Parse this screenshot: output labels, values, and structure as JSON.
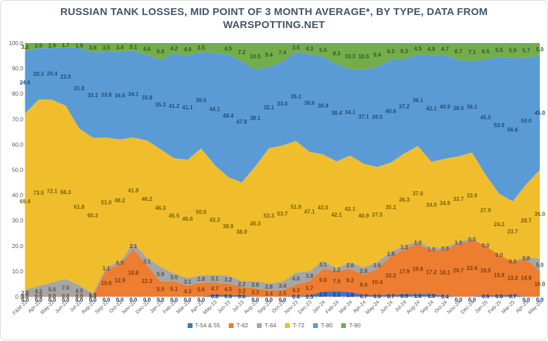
{
  "chart_data": {
    "type": "area",
    "stacking": "percent",
    "title": "RUSSIAN TANK LOSSES, MID POINT OF 3 MONTH AVERAGE*, BY TYPE, DATA FROM WARSPOTTING.NET",
    "grid": false,
    "legend_position": "bottom",
    "categories": [
      "F&M 22",
      "Apr-22",
      "May-22",
      "Jun-22",
      "Jul-22",
      "Aug-22",
      "Sep-22",
      "Oct-22",
      "Nov-22",
      "Dec-22",
      "Jan-23",
      "Feb-23",
      "Mar-23",
      "Apr-23",
      "May-23",
      "Jun-23",
      "Jul-23",
      "Aug-23",
      "Sep-23",
      "Oct-23",
      "Nov-23",
      "Dec-23",
      "Jan-24",
      "Feb-24",
      "Mar-24",
      "Apr-24",
      "May-24",
      "Jun-24",
      "Jul-24",
      "Aug-24",
      "Sep-24",
      "Oct-24",
      "Nov-24",
      "Dec-24",
      "Jan-25",
      "Feb-25",
      "Mar-25",
      "Apr-25",
      "May-25"
    ],
    "y_axis": {
      "min": 0,
      "max": 100,
      "step": 10,
      "tick_labels": [
        "100.0",
        "90.0",
        "80.0",
        "70.0",
        "60.0",
        "50.0",
        "40.0",
        "30.0",
        "20.0",
        "10.0",
        "0.0"
      ]
    },
    "series": [
      {
        "name": "T-54 & 55",
        "color": "#4472C4",
        "label_color": "#1F3864",
        "values": [
          0.0,
          0.0,
          0.0,
          0.0,
          0.0,
          0.0,
          0.0,
          0.0,
          0.0,
          0.0,
          0.0,
          0.0,
          0.0,
          0.0,
          0.8,
          0.6,
          0.6,
          0.0,
          0.0,
          0.0,
          0.4,
          0.5,
          2.0,
          2.1,
          1.8,
          0.7,
          0.6,
          0.7,
          0.9,
          1.0,
          1.0,
          0.4,
          0.0,
          0.0,
          0.6,
          0.6,
          0.7,
          0.0,
          0.0
        ]
      },
      {
        "name": "T-62",
        "color": "#ED7D31",
        "label_color": "#833C0C",
        "values": [
          0.0,
          0.0,
          0.0,
          0.0,
          0.0,
          0.0,
          10.6,
          12.9,
          18.8,
          12.3,
          5.9,
          6.1,
          4.3,
          5.6,
          4.7,
          4.5,
          3.3,
          3.3,
          2.4,
          2.5,
          4.3,
          5.7,
          9.0,
          7.9,
          9.2,
          8.0,
          10.4,
          15.2,
          17.9,
          19.8,
          17.2,
          18.1,
          20.7,
          22.4,
          19.5,
          15.8,
          13.2,
          14.8,
          10.0
        ]
      },
      {
        "name": "T-64",
        "color": "#A6A6A6",
        "label_color": "#525252",
        "values": [
          2.8,
          4.2,
          5.6,
          7.0,
          4.5,
          1.3,
          1.1,
          0.9,
          2.1,
          3.1,
          5.9,
          3.0,
          3.1,
          2.8,
          3.1,
          3.2,
          2.2,
          2.8,
          2.8,
          3.4,
          4.8,
          3.8,
          3.1,
          1.2,
          2.6,
          2.8,
          2.6,
          1.8,
          1.3,
          1.0,
          1.0,
          0.9,
          1.0,
          0.5,
          0.0,
          0.0,
          0.0,
          0.8,
          5.0
        ]
      },
      {
        "name": "T-72",
        "color": "#F0BE2C",
        "label_color": "#7F6000",
        "values": [
          69.4,
          73.5,
          72.1,
          68.3,
          61.8,
          60.3,
          51.0,
          48.2,
          41.8,
          46.2,
          46.3,
          45.5,
          46.6,
          50.0,
          43.3,
          38.9,
          38.9,
          45.3,
          53.3,
          53.7,
          51.9,
          47.1,
          42.0,
          42.1,
          42.1,
          40.9,
          37.5,
          35.1,
          36.3,
          37.6,
          34.0,
          34.9,
          33.7,
          33.9,
          27.9,
          24.2,
          23.7,
          28.7,
          35.0
        ]
      },
      {
        "name": "T-80",
        "color": "#5B9BD5",
        "label_color": "#1F4E79",
        "values": [
          24.6,
          20.3,
          20.4,
          23.0,
          31.8,
          33.1,
          33.8,
          34.6,
          34.1,
          33.8,
          35.3,
          41.2,
          41.1,
          38.0,
          44.1,
          48.4,
          47.8,
          38.1,
          32.1,
          33.0,
          35.1,
          38.6,
          38.4,
          38.4,
          34.1,
          37.1,
          39.5,
          40.6,
          37.2,
          36.1,
          42.1,
          40.9,
          38.0,
          36.1,
          45.5,
          53.9,
          56.6,
          50.0,
          45.0
        ]
      },
      {
        "name": "T-90",
        "color": "#73AD4C",
        "label_color": "#375623",
        "values": [
          3.2,
          2.0,
          1.9,
          1.7,
          1.9,
          3.6,
          3.5,
          3.4,
          3.1,
          4.6,
          6.6,
          4.2,
          4.9,
          3.5,
          4.0,
          4.5,
          7.2,
          10.5,
          9.4,
          7.4,
          3.5,
          4.3,
          5.5,
          8.3,
          10.3,
          10.5,
          9.4,
          6.5,
          6.3,
          4.5,
          4.8,
          4.7,
          6.7,
          7.1,
          6.5,
          5.5,
          5.9,
          5.7,
          5.0
        ],
        "hidden_label_indices": [
          14
        ]
      }
    ],
    "legend": {
      "items": [
        "T-54 & 55",
        "T-62",
        "T-64",
        "T-72",
        "T-80",
        "T-90"
      ]
    }
  }
}
